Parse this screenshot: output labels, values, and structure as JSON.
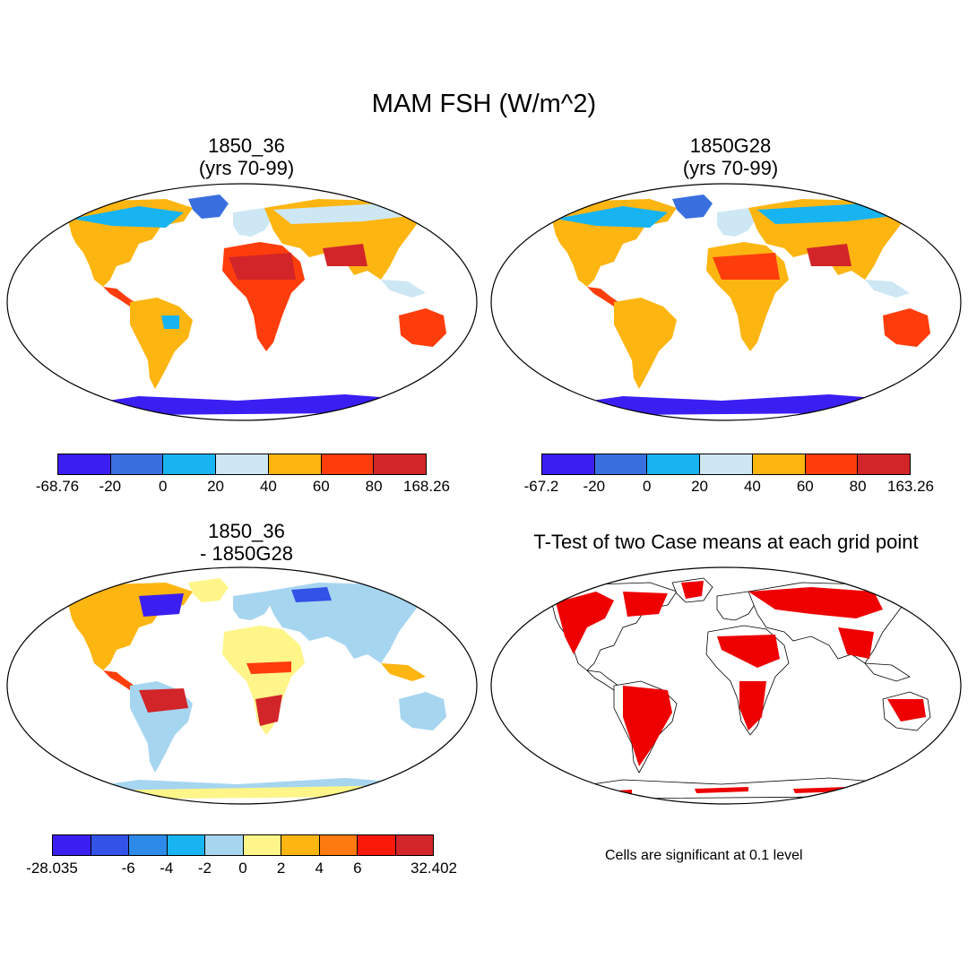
{
  "title": "MAM FSH (W/m^2)",
  "panels": {
    "p1": {
      "line1": "1850_36",
      "line2": "(yrs 70-99)"
    },
    "p2": {
      "line1": "1850G28",
      "line2": "(yrs 70-99)"
    },
    "p3": {
      "line1": "1850_36",
      "line2": "- 1850G28"
    },
    "p4": {
      "line1": "T-Test of two Case means at each grid point"
    }
  },
  "colorbars": {
    "cb1": {
      "colors": [
        "#3b1ff2",
        "#3a6fe0",
        "#18b4f2",
        "#cde8f4",
        "#fdb512",
        "#fe3d0c",
        "#d2252a"
      ],
      "labels": [
        "-68.76",
        "-20",
        "0",
        "20",
        "40",
        "60",
        "80",
        "168.26"
      ]
    },
    "cb2": {
      "colors": [
        "#3b1ff2",
        "#3a6fe0",
        "#18b4f2",
        "#cde8f4",
        "#fdb512",
        "#fe3d0c",
        "#d2252a"
      ],
      "labels": [
        "-67.2",
        "-20",
        "0",
        "20",
        "40",
        "60",
        "80",
        "163.26"
      ]
    },
    "cb3": {
      "colors": [
        "#3b1ff2",
        "#3352e6",
        "#2e8ae8",
        "#18b4f2",
        "#a6d5f0",
        "#fff588",
        "#fdb512",
        "#fd7a10",
        "#fb1a0a",
        "#d2252a"
      ],
      "labels": [
        "-28.035",
        "",
        "-6",
        "-4",
        "-2",
        "0",
        "2",
        "4",
        "6",
        "",
        "32.402"
      ]
    }
  },
  "note": "Cells are significant at 0.1 level"
}
